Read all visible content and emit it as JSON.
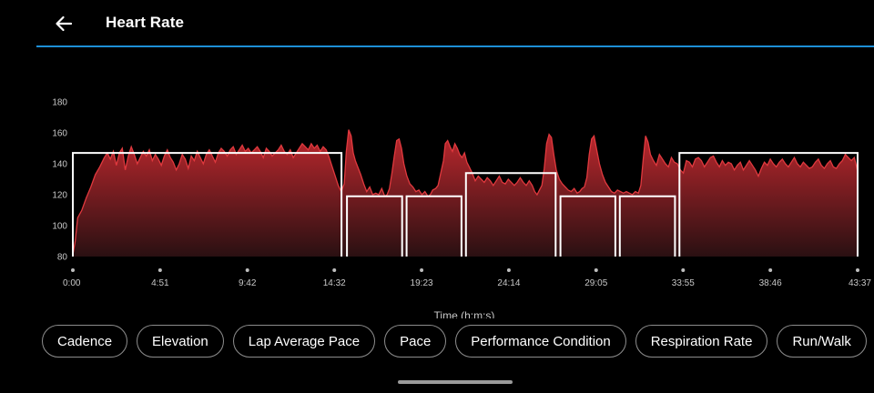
{
  "header": {
    "title": "Heart Rate",
    "back_icon": "arrow-left-icon",
    "accent_color": "#1d8fd6"
  },
  "chart_data": {
    "type": "area",
    "title": "",
    "xlabel": "Time (h:m:s)",
    "ylabel": "",
    "y_ticks": [
      180,
      160,
      140,
      120,
      100,
      80
    ],
    "ylim": [
      80,
      180
    ],
    "x_tick_labels": [
      "0:00",
      "4:51",
      "9:42",
      "14:32",
      "19:23",
      "24:14",
      "29:05",
      "33:55",
      "38:46",
      "43:37"
    ],
    "x_tick_seconds": [
      0,
      291,
      582,
      872,
      1163,
      1454,
      1745,
      2035,
      2326,
      2617
    ],
    "xlim_seconds": [
      0,
      2617
    ],
    "series": [
      {
        "values": [
          [
            0,
            81
          ],
          [
            8,
            90
          ],
          [
            16,
            105
          ],
          [
            30,
            110
          ],
          [
            45,
            118
          ],
          [
            60,
            125
          ],
          [
            75,
            133
          ],
          [
            90,
            138
          ],
          [
            105,
            144
          ],
          [
            115,
            147
          ],
          [
            125,
            143
          ],
          [
            135,
            148
          ],
          [
            145,
            139
          ],
          [
            155,
            147
          ],
          [
            165,
            150
          ],
          [
            175,
            136
          ],
          [
            185,
            145
          ],
          [
            195,
            151
          ],
          [
            205,
            146
          ],
          [
            215,
            140
          ],
          [
            225,
            144
          ],
          [
            235,
            148
          ],
          [
            245,
            145
          ],
          [
            255,
            149
          ],
          [
            265,
            142
          ],
          [
            275,
            146
          ],
          [
            285,
            143
          ],
          [
            295,
            139
          ],
          [
            305,
            145
          ],
          [
            315,
            149
          ],
          [
            325,
            144
          ],
          [
            335,
            141
          ],
          [
            345,
            136
          ],
          [
            355,
            140
          ],
          [
            365,
            146
          ],
          [
            375,
            143
          ],
          [
            385,
            137
          ],
          [
            395,
            145
          ],
          [
            405,
            142
          ],
          [
            415,
            148
          ],
          [
            425,
            144
          ],
          [
            435,
            140
          ],
          [
            445,
            146
          ],
          [
            455,
            149
          ],
          [
            465,
            145
          ],
          [
            475,
            141
          ],
          [
            485,
            147
          ],
          [
            495,
            150
          ],
          [
            505,
            148
          ],
          [
            515,
            145
          ],
          [
            525,
            149
          ],
          [
            535,
            151
          ],
          [
            545,
            146
          ],
          [
            555,
            149
          ],
          [
            565,
            152
          ],
          [
            575,
            148
          ],
          [
            585,
            150
          ],
          [
            595,
            147
          ],
          [
            605,
            149
          ],
          [
            615,
            151
          ],
          [
            625,
            148
          ],
          [
            635,
            144
          ],
          [
            645,
            150
          ],
          [
            655,
            148
          ],
          [
            665,
            145
          ],
          [
            675,
            147
          ],
          [
            685,
            149
          ],
          [
            695,
            152
          ],
          [
            705,
            148
          ],
          [
            715,
            146
          ],
          [
            725,
            149
          ],
          [
            735,
            144
          ],
          [
            745,
            147
          ],
          [
            755,
            150
          ],
          [
            765,
            153
          ],
          [
            775,
            151
          ],
          [
            785,
            149
          ],
          [
            795,
            153
          ],
          [
            805,
            150
          ],
          [
            815,
            152
          ],
          [
            825,
            148
          ],
          [
            835,
            151
          ],
          [
            845,
            149
          ],
          [
            855,
            144
          ],
          [
            865,
            138
          ],
          [
            875,
            132
          ],
          [
            885,
            126
          ],
          [
            895,
            122
          ],
          [
            905,
            127
          ],
          [
            912,
            148
          ],
          [
            920,
            162
          ],
          [
            928,
            158
          ],
          [
            935,
            147
          ],
          [
            942,
            142
          ],
          [
            950,
            138
          ],
          [
            960,
            133
          ],
          [
            970,
            127
          ],
          [
            980,
            122
          ],
          [
            990,
            125
          ],
          [
            1000,
            120
          ],
          [
            1010,
            121
          ],
          [
            1020,
            120
          ],
          [
            1030,
            124
          ],
          [
            1040,
            119
          ],
          [
            1048,
            120
          ],
          [
            1056,
            124
          ],
          [
            1064,
            134
          ],
          [
            1072,
            145
          ],
          [
            1080,
            155
          ],
          [
            1088,
            156
          ],
          [
            1096,
            150
          ],
          [
            1104,
            140
          ],
          [
            1114,
            132
          ],
          [
            1124,
            127
          ],
          [
            1134,
            125
          ],
          [
            1144,
            122
          ],
          [
            1154,
            123
          ],
          [
            1164,
            120
          ],
          [
            1174,
            122
          ],
          [
            1184,
            119
          ],
          [
            1192,
            120
          ],
          [
            1200,
            123
          ],
          [
            1210,
            124
          ],
          [
            1218,
            126
          ],
          [
            1228,
            135
          ],
          [
            1236,
            142
          ],
          [
            1242,
            153
          ],
          [
            1250,
            155
          ],
          [
            1258,
            151
          ],
          [
            1266,
            148
          ],
          [
            1274,
            153
          ],
          [
            1282,
            150
          ],
          [
            1290,
            146
          ],
          [
            1298,
            144
          ],
          [
            1306,
            147
          ],
          [
            1314,
            141
          ],
          [
            1322,
            138
          ],
          [
            1332,
            134
          ],
          [
            1342,
            129
          ],
          [
            1352,
            132
          ],
          [
            1362,
            130
          ],
          [
            1372,
            128
          ],
          [
            1382,
            131
          ],
          [
            1392,
            129
          ],
          [
            1402,
            126
          ],
          [
            1412,
            129
          ],
          [
            1422,
            132
          ],
          [
            1432,
            128
          ],
          [
            1442,
            127
          ],
          [
            1452,
            130
          ],
          [
            1462,
            128
          ],
          [
            1472,
            126
          ],
          [
            1482,
            128
          ],
          [
            1492,
            131
          ],
          [
            1502,
            128
          ],
          [
            1512,
            126
          ],
          [
            1522,
            129
          ],
          [
            1532,
            126
          ],
          [
            1540,
            122
          ],
          [
            1548,
            120
          ],
          [
            1556,
            123
          ],
          [
            1564,
            126
          ],
          [
            1572,
            137
          ],
          [
            1580,
            153
          ],
          [
            1588,
            159
          ],
          [
            1596,
            157
          ],
          [
            1604,
            146
          ],
          [
            1612,
            136
          ],
          [
            1622,
            130
          ],
          [
            1632,
            127
          ],
          [
            1642,
            125
          ],
          [
            1652,
            123
          ],
          [
            1662,
            122
          ],
          [
            1672,
            124
          ],
          [
            1682,
            121
          ],
          [
            1690,
            122
          ],
          [
            1698,
            124
          ],
          [
            1706,
            125
          ],
          [
            1714,
            131
          ],
          [
            1722,
            146
          ],
          [
            1730,
            156
          ],
          [
            1738,
            158
          ],
          [
            1746,
            150
          ],
          [
            1756,
            140
          ],
          [
            1766,
            133
          ],
          [
            1776,
            128
          ],
          [
            1786,
            125
          ],
          [
            1796,
            122
          ],
          [
            1806,
            121
          ],
          [
            1816,
            123
          ],
          [
            1826,
            122
          ],
          [
            1836,
            121
          ],
          [
            1846,
            122
          ],
          [
            1856,
            121
          ],
          [
            1866,
            120
          ],
          [
            1876,
            122
          ],
          [
            1886,
            121
          ],
          [
            1894,
            126
          ],
          [
            1902,
            143
          ],
          [
            1910,
            158
          ],
          [
            1918,
            154
          ],
          [
            1926,
            146
          ],
          [
            1936,
            142
          ],
          [
            1946,
            139
          ],
          [
            1956,
            146
          ],
          [
            1966,
            143
          ],
          [
            1976,
            140
          ],
          [
            1986,
            138
          ],
          [
            1996,
            144
          ],
          [
            2006,
            141
          ],
          [
            2016,
            140
          ],
          [
            2026,
            136
          ],
          [
            2036,
            134
          ],
          [
            2046,
            142
          ],
          [
            2056,
            141
          ],
          [
            2066,
            138
          ],
          [
            2076,
            143
          ],
          [
            2086,
            144
          ],
          [
            2096,
            142
          ],
          [
            2106,
            138
          ],
          [
            2116,
            141
          ],
          [
            2126,
            144
          ],
          [
            2136,
            145
          ],
          [
            2146,
            141
          ],
          [
            2156,
            138
          ],
          [
            2166,
            142
          ],
          [
            2176,
            139
          ],
          [
            2186,
            141
          ],
          [
            2196,
            140
          ],
          [
            2206,
            136
          ],
          [
            2216,
            139
          ],
          [
            2226,
            141
          ],
          [
            2236,
            136
          ],
          [
            2246,
            139
          ],
          [
            2256,
            142
          ],
          [
            2266,
            139
          ],
          [
            2276,
            136
          ],
          [
            2286,
            132
          ],
          [
            2296,
            137
          ],
          [
            2306,
            141
          ],
          [
            2316,
            139
          ],
          [
            2326,
            143
          ],
          [
            2336,
            140
          ],
          [
            2346,
            138
          ],
          [
            2356,
            141
          ],
          [
            2366,
            143
          ],
          [
            2376,
            140
          ],
          [
            2386,
            138
          ],
          [
            2396,
            141
          ],
          [
            2406,
            144
          ],
          [
            2416,
            140
          ],
          [
            2426,
            138
          ],
          [
            2436,
            141
          ],
          [
            2446,
            139
          ],
          [
            2456,
            137
          ],
          [
            2466,
            138
          ],
          [
            2476,
            141
          ],
          [
            2486,
            143
          ],
          [
            2496,
            139
          ],
          [
            2506,
            137
          ],
          [
            2516,
            140
          ],
          [
            2526,
            142
          ],
          [
            2536,
            138
          ],
          [
            2546,
            137
          ],
          [
            2556,
            140
          ],
          [
            2566,
            142
          ],
          [
            2576,
            146
          ],
          [
            2586,
            144
          ],
          [
            2596,
            142
          ],
          [
            2606,
            144
          ],
          [
            2612,
            139
          ],
          [
            2617,
            135
          ]
        ],
        "color": "#e0393e"
      }
    ],
    "lap_averages": [
      {
        "start_s": 0,
        "end_s": 896,
        "avg": 147
      },
      {
        "start_s": 914,
        "end_s": 1098,
        "avg": 119
      },
      {
        "start_s": 1113,
        "end_s": 1296,
        "avg": 119
      },
      {
        "start_s": 1311,
        "end_s": 1610,
        "avg": 134
      },
      {
        "start_s": 1626,
        "end_s": 1809,
        "avg": 119
      },
      {
        "start_s": 1824,
        "end_s": 2008,
        "avg": 119
      },
      {
        "start_s": 2023,
        "end_s": 2617,
        "avg": 147
      }
    ],
    "grid": false,
    "legend": "none",
    "fill_gradient": [
      "#c0282e",
      "#2a1012"
    ]
  },
  "chips": [
    "Cadence",
    "Elevation",
    "Lap Average Pace",
    "Pace",
    "Performance Condition",
    "Respiration Rate",
    "Run/Walk"
  ]
}
